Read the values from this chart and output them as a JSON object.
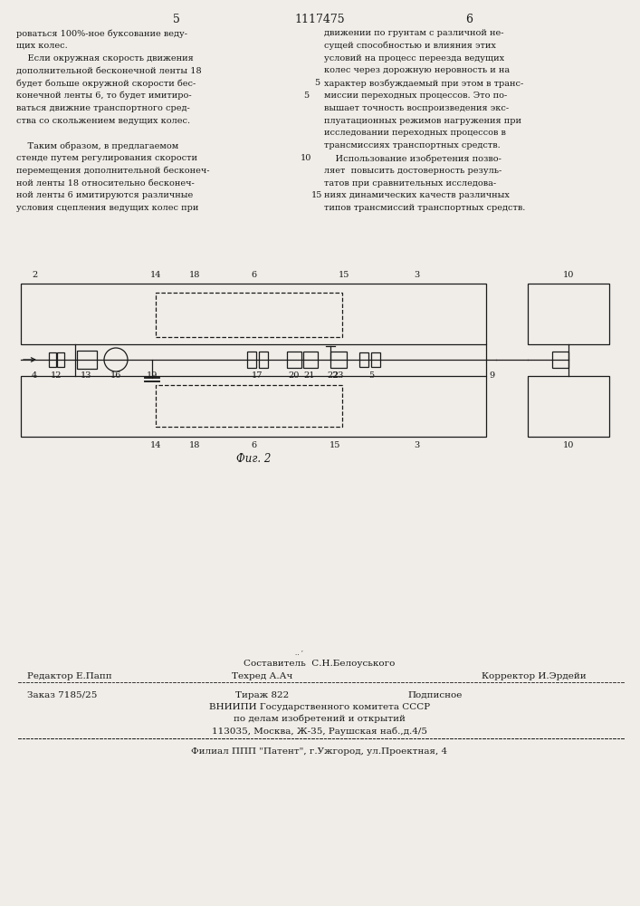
{
  "page_number_left": "5",
  "page_number_center": "1117475",
  "page_number_right": "6",
  "bg_color": "#f0ede8",
  "text_color": "#1a1a1a",
  "col1_text": [
    "роваться 100%-ное буксование веду-",
    "щих колес.",
    "    Если окружная скорость движения",
    "дополнительной бесконечной ленты 18",
    "будет больше окружной скорости бес-",
    "конечной ленты 6, то будет имитиро-",
    "ваться движние транспортного сред-",
    "ства со скольжением ведущих колес.",
    "",
    "    Таким образом, в предлагаемом",
    "стенде путем регулирования скорости",
    "перемещения дополнительной бесконеч-",
    "ной ленты 18 относительно бесконеч-",
    "ной ленты 6 имитируются различные",
    "условия сцепления ведущих колес при"
  ],
  "col2_text": [
    "движении по грунтам с различной не-",
    "сущей способностью и влияния этих",
    "условий на процесс переезда ведущих",
    "колес через дорожную неровность и на",
    "характер возбуждаемый при этом в транс-",
    "миссии переходных процессов. Это по-",
    "вышает точность воспроизведения экс-",
    "плуатационных режимов нагружения при",
    "исследовании переходных процессов в",
    "трансмиссиях транспортных средств.",
    "    Использование изобретения позво-",
    "ляет  повысить достоверность резуль-",
    "татов при сравнительных исследова-",
    "ниях динамических качеств различных",
    "типов трансмиссий транспортных средств."
  ],
  "col1_line_nums": {
    "5": 5,
    "10": 10
  },
  "col2_line_nums": {
    "4": 5,
    "13": 15
  },
  "fig_caption": "Фиг. 2",
  "footer_text_sestavitel": "Составитель  С.Н.Белоуського",
  "footer_text_editor": "Редактор Е.Папп",
  "footer_text_tekhred": "Техред А.Ач",
  "footer_text_korrektor": "Корректор И.Эрдейи",
  "footer_text_zakaz": "Заказ 7185/25",
  "footer_text_tirazh": "Тираж 822",
  "footer_text_podpisnoe": "Подписное",
  "footer_text_vniipи": "ВНИИПИ Государственного комитета СССР",
  "footer_text_delam": "по делам изобретений и открытий",
  "footer_text_addr": "113035, Москва, Ж-35, Раушская наб.,д.4/5",
  "footer_text_filial": "Филиал ППП \"Патент\", г.Ужгород, ул.Проектная, 4"
}
